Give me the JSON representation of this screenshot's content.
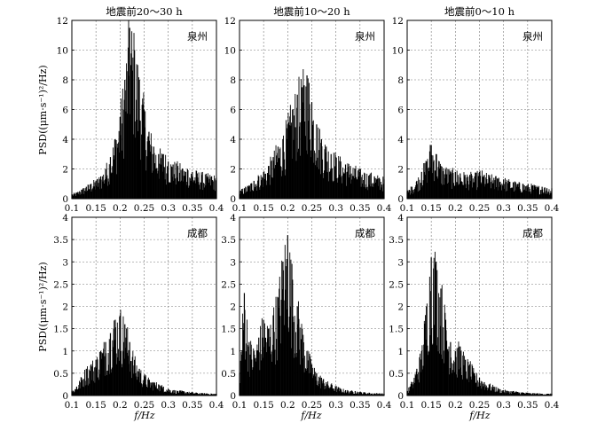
{
  "figure": {
    "x_axis_label": "f/Hz",
    "y_axis_label": "PSD((μm·s⁻¹)²/Hz)"
  },
  "chart_data": [
    {
      "type": "bar",
      "column_title": "地震前20～30 h",
      "station": "泉州",
      "xlim": [
        0.1,
        0.4
      ],
      "ylim": [
        0,
        12
      ],
      "xticks": [
        0.1,
        0.15,
        0.2,
        0.25,
        0.3,
        0.35,
        0.4
      ],
      "yticks": [
        0,
        2,
        4,
        6,
        8,
        10,
        12
      ],
      "grid": true,
      "x": [
        0.1,
        0.11,
        0.12,
        0.13,
        0.14,
        0.15,
        0.16,
        0.17,
        0.18,
        0.19,
        0.2,
        0.21,
        0.22,
        0.23,
        0.24,
        0.25,
        0.26,
        0.27,
        0.28,
        0.29,
        0.3,
        0.31,
        0.32,
        0.33,
        0.34,
        0.35,
        0.36,
        0.37,
        0.38,
        0.39,
        0.4
      ],
      "values": [
        0.3,
        0.4,
        0.6,
        0.8,
        1.0,
        1.2,
        1.5,
        2.0,
        2.8,
        4.0,
        5.5,
        8.0,
        11.5,
        10.0,
        8.0,
        6.0,
        4.5,
        3.5,
        3.0,
        3.0,
        2.5,
        2.3,
        2.2,
        2.0,
        2.0,
        1.8,
        1.7,
        1.6,
        1.5,
        1.5,
        1.4
      ]
    },
    {
      "type": "bar",
      "column_title": "地震前10～20 h",
      "station": "泉州",
      "xlim": [
        0.1,
        0.4
      ],
      "ylim": [
        0,
        12
      ],
      "xticks": [
        0.1,
        0.15,
        0.2,
        0.25,
        0.3,
        0.35,
        0.4
      ],
      "yticks": [
        0,
        2,
        4,
        6,
        8,
        10,
        12
      ],
      "grid": true,
      "x": [
        0.1,
        0.11,
        0.12,
        0.13,
        0.14,
        0.15,
        0.16,
        0.17,
        0.18,
        0.19,
        0.2,
        0.21,
        0.22,
        0.23,
        0.24,
        0.25,
        0.26,
        0.27,
        0.28,
        0.29,
        0.3,
        0.31,
        0.32,
        0.33,
        0.34,
        0.35,
        0.36,
        0.37,
        0.38,
        0.39,
        0.4
      ],
      "values": [
        0.5,
        0.7,
        0.9,
        1.2,
        1.5,
        1.8,
        2.2,
        2.8,
        3.5,
        4.0,
        5.0,
        6.0,
        7.0,
        7.5,
        8.3,
        6.5,
        5.0,
        4.0,
        3.5,
        3.0,
        2.8,
        2.5,
        2.3,
        2.2,
        2.0,
        1.8,
        1.7,
        1.6,
        1.5,
        1.4,
        1.3
      ]
    },
    {
      "type": "bar",
      "column_title": "地震前0～10 h",
      "station": "泉州",
      "xlim": [
        0.1,
        0.4
      ],
      "ylim": [
        0,
        12
      ],
      "xticks": [
        0.1,
        0.15,
        0.2,
        0.25,
        0.3,
        0.35,
        0.4
      ],
      "yticks": [
        0,
        2,
        4,
        6,
        8,
        10,
        12
      ],
      "grid": true,
      "x": [
        0.1,
        0.11,
        0.12,
        0.13,
        0.14,
        0.15,
        0.16,
        0.17,
        0.18,
        0.19,
        0.2,
        0.21,
        0.22,
        0.23,
        0.24,
        0.25,
        0.26,
        0.27,
        0.28,
        0.29,
        0.3,
        0.31,
        0.32,
        0.33,
        0.34,
        0.35,
        0.36,
        0.37,
        0.38,
        0.39,
        0.4
      ],
      "values": [
        0.5,
        0.8,
        1.2,
        1.8,
        2.5,
        3.6,
        3.0,
        2.2,
        2.0,
        1.8,
        1.8,
        1.7,
        1.6,
        1.6,
        1.5,
        1.8,
        1.6,
        1.5,
        1.4,
        1.4,
        1.3,
        1.2,
        1.1,
        1.0,
        1.0,
        0.9,
        0.9,
        0.8,
        0.8,
        0.7,
        0.7
      ]
    },
    {
      "type": "bar",
      "column_title": "",
      "station": "成都",
      "xlim": [
        0.1,
        0.4
      ],
      "ylim": [
        0,
        4
      ],
      "xticks": [
        0.1,
        0.15,
        0.2,
        0.25,
        0.3,
        0.35,
        0.4
      ],
      "yticks": [
        0,
        0.5,
        1,
        1.5,
        2,
        2.5,
        3,
        3.5,
        4
      ],
      "grid": true,
      "x": [
        0.1,
        0.11,
        0.12,
        0.13,
        0.14,
        0.15,
        0.16,
        0.17,
        0.18,
        0.19,
        0.2,
        0.21,
        0.22,
        0.23,
        0.24,
        0.25,
        0.26,
        0.27,
        0.28,
        0.29,
        0.3,
        0.31,
        0.32,
        0.33,
        0.34,
        0.35,
        0.36,
        0.37,
        0.38,
        0.39,
        0.4
      ],
      "values": [
        0.1,
        0.2,
        0.4,
        0.6,
        0.7,
        0.8,
        1.0,
        1.2,
        1.4,
        1.7,
        1.8,
        1.6,
        1.2,
        0.8,
        0.6,
        0.45,
        0.35,
        0.3,
        0.25,
        0.2,
        0.15,
        0.12,
        0.1,
        0.1,
        0.08,
        0.07,
        0.06,
        0.05,
        0.05,
        0.04,
        0.04
      ]
    },
    {
      "type": "bar",
      "column_title": "",
      "station": "成都",
      "xlim": [
        0.1,
        0.4
      ],
      "ylim": [
        0,
        4
      ],
      "xticks": [
        0.1,
        0.15,
        0.2,
        0.25,
        0.3,
        0.35,
        0.4
      ],
      "yticks": [
        0,
        0.5,
        1,
        1.5,
        2,
        2.5,
        3,
        3.5,
        4
      ],
      "grid": true,
      "x": [
        0.1,
        0.11,
        0.12,
        0.13,
        0.14,
        0.15,
        0.16,
        0.17,
        0.18,
        0.19,
        0.2,
        0.21,
        0.22,
        0.23,
        0.24,
        0.25,
        0.26,
        0.27,
        0.28,
        0.29,
        0.3,
        0.31,
        0.32,
        0.33,
        0.34,
        0.35,
        0.36,
        0.37,
        0.38,
        0.39,
        0.4
      ],
      "values": [
        0.5,
        2.3,
        1.2,
        1.0,
        1.3,
        1.7,
        1.5,
        1.8,
        2.2,
        3.0,
        3.6,
        2.6,
        2.0,
        1.5,
        1.0,
        0.7,
        0.5,
        0.4,
        0.3,
        0.25,
        0.2,
        0.15,
        0.12,
        0.1,
        0.1,
        0.08,
        0.07,
        0.06,
        0.05,
        0.05,
        0.04
      ]
    },
    {
      "type": "bar",
      "column_title": "",
      "station": "成都",
      "xlim": [
        0.1,
        0.4
      ],
      "ylim": [
        0,
        4
      ],
      "xticks": [
        0.1,
        0.15,
        0.2,
        0.25,
        0.3,
        0.35,
        0.4
      ],
      "yticks": [
        0,
        0.5,
        1,
        1.5,
        2,
        2.5,
        3,
        3.5,
        4
      ],
      "grid": true,
      "x": [
        0.1,
        0.11,
        0.12,
        0.13,
        0.14,
        0.15,
        0.16,
        0.17,
        0.18,
        0.19,
        0.2,
        0.21,
        0.22,
        0.23,
        0.24,
        0.25,
        0.26,
        0.27,
        0.28,
        0.29,
        0.3,
        0.31,
        0.32,
        0.33,
        0.34,
        0.35,
        0.36,
        0.37,
        0.38,
        0.39,
        0.4
      ],
      "values": [
        0.1,
        0.3,
        0.6,
        1.0,
        2.0,
        3.1,
        3.0,
        2.4,
        1.7,
        1.2,
        1.0,
        1.1,
        0.8,
        0.7,
        0.5,
        0.4,
        0.3,
        0.25,
        0.2,
        0.15,
        0.12,
        0.1,
        0.1,
        0.08,
        0.07,
        0.06,
        0.05,
        0.05,
        0.04,
        0.04,
        0.04
      ]
    }
  ]
}
